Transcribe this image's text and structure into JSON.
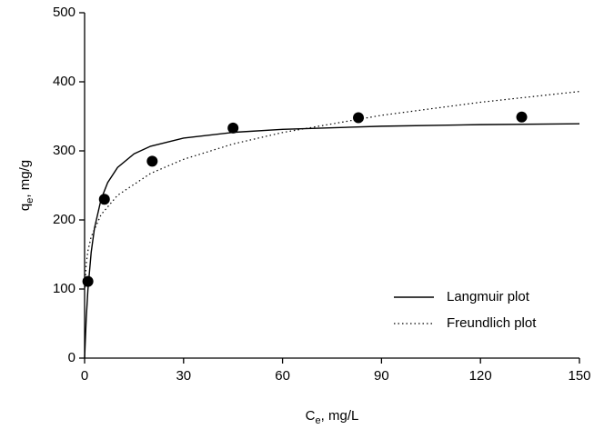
{
  "chart_data": {
    "type": "scatter-fit",
    "x_label": [
      "C",
      "e",
      ", mg/L"
    ],
    "y_label": [
      "q",
      "e",
      ", mg/g"
    ],
    "xlim": [
      0,
      150
    ],
    "xticks": [
      0,
      30,
      60,
      90,
      120,
      150
    ],
    "ylim": [
      0,
      500
    ],
    "yticks": [
      0,
      100,
      200,
      300,
      400,
      500
    ],
    "legend": "lower right",
    "series": [
      {
        "kind": "points",
        "color": "#000000",
        "x": [
          1,
          6,
          20.5,
          45,
          83,
          132.5
        ],
        "values": [
          111,
          230,
          285,
          333,
          348,
          349
        ]
      },
      {
        "kind": "line",
        "name": "Langmuir plot",
        "color": "#000000",
        "dash": "solid",
        "x": [
          0,
          0.5,
          1,
          2,
          3,
          5,
          7,
          10,
          15,
          20,
          30,
          45,
          60,
          90,
          120,
          150
        ],
        "values": [
          0,
          57.5,
          98.6,
          153.3,
          188.2,
          230,
          254.2,
          276,
          295.7,
          306.7,
          318.5,
          326.8,
          331.2,
          335.7,
          338,
          339.3
        ]
      },
      {
        "kind": "line",
        "name": "Freundlich plot",
        "color": "#000000",
        "dash": "dotted",
        "x": [
          0.1,
          0.5,
          1,
          2,
          5,
          10,
          20,
          30,
          45,
          60,
          90,
          120,
          150
        ],
        "values": [
          102,
          136.6,
          155,
          175.8,
          207.7,
          235.7,
          267.4,
          287.8,
          310,
          326.6,
          351.5,
          370.4,
          386
        ]
      }
    ]
  }
}
